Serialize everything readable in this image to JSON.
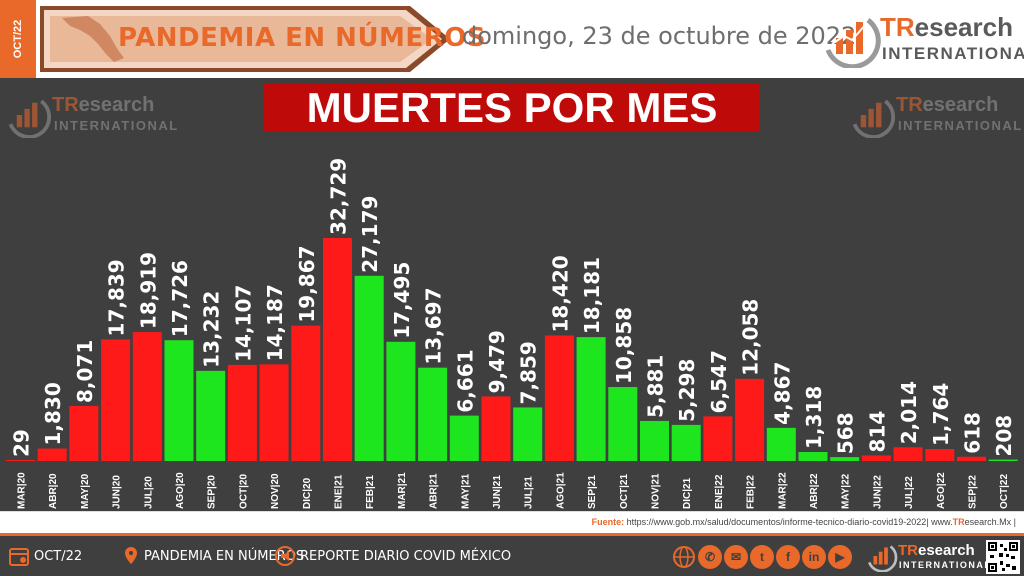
{
  "header": {
    "side_label": "OCT/22",
    "banner_title": "PANDEMIA EN NÚMEROS",
    "date": "domingo, 23 de octubre de 2022"
  },
  "brand": {
    "tr": "TR",
    "research": "esearch",
    "international": "INTERNATIONAL"
  },
  "colors": {
    "accent": "#e8692a",
    "increase": "#ff1a1a",
    "decrease": "#1ee61e",
    "chart_bg": "#3f3f3f",
    "title_bg": "#bf0a0a"
  },
  "chart_data": {
    "type": "bar",
    "title": "MUERTES POR MES",
    "categories": [
      "MAR|20",
      "ABR|20",
      "MAY|20",
      "JUN|20",
      "JUL|20",
      "AGO|20",
      "SEP|20",
      "OCT|20",
      "NOV|20",
      "DIC|20",
      "ENE|21",
      "FEB|21",
      "MAR|21",
      "ABR|21",
      "MAY|21",
      "JUN|21",
      "JUL|21",
      "AGO|21",
      "SEP|21",
      "OCT|21",
      "NOV|21",
      "DIC|21",
      "ENE|22",
      "FEB|22",
      "MAR|22",
      "ABR|22",
      "MAY|22",
      "JUN|22",
      "JUL|22",
      "AGO|22",
      "SEP|22",
      "OCT|22"
    ],
    "values": [
      29,
      1830,
      8071,
      17839,
      18919,
      17726,
      13232,
      14107,
      14187,
      19867,
      32729,
      27179,
      17495,
      13697,
      6661,
      9479,
      7859,
      18420,
      18181,
      10858,
      5881,
      5298,
      6547,
      12058,
      4867,
      1318,
      568,
      814,
      2014,
      1764,
      618,
      208
    ],
    "labels": [
      "29",
      "1,830",
      "8,071",
      "17,839",
      "18,919",
      "17,726",
      "13,232",
      "14,107",
      "14,187",
      "19,867",
      "32,729",
      "27,179",
      "17,495",
      "13,697",
      "6,661",
      "9,479",
      "7,859",
      "18,420",
      "18,181",
      "10,858",
      "5,881",
      "5,298",
      "6,547",
      "12,058",
      "4,867",
      "1,318",
      "568",
      "814",
      "2,014",
      "1,764",
      "618",
      "208"
    ],
    "bar_colors": [
      "red",
      "red",
      "red",
      "red",
      "red",
      "green",
      "green",
      "red",
      "red",
      "red",
      "red",
      "green",
      "green",
      "green",
      "green",
      "red",
      "green",
      "red",
      "green",
      "green",
      "green",
      "green",
      "red",
      "red",
      "green",
      "green",
      "green",
      "red",
      "red",
      "red",
      "red",
      "green"
    ],
    "ylim": [
      0,
      34000
    ],
    "grid": false,
    "legend": "none"
  },
  "source": {
    "label": "Fuente:",
    "url": "https://www.gob.mx/salud/documentos/informe-tecnico-diario-covid19-2022|",
    "site_prefix": "www.",
    "site_bold": "TR",
    "site_rest": "esearch.Mx |"
  },
  "footer": {
    "date_label": "OCT/22",
    "section_label": "PANDEMIA EN NÚMEROS",
    "report_label": "REPORTE DIARIO COVID MÉXICO",
    "icons": [
      "globe-icon",
      "whatsapp-icon",
      "email-icon",
      "twitter-icon",
      "facebook-icon",
      "linkedin-icon",
      "youtube-icon"
    ]
  }
}
